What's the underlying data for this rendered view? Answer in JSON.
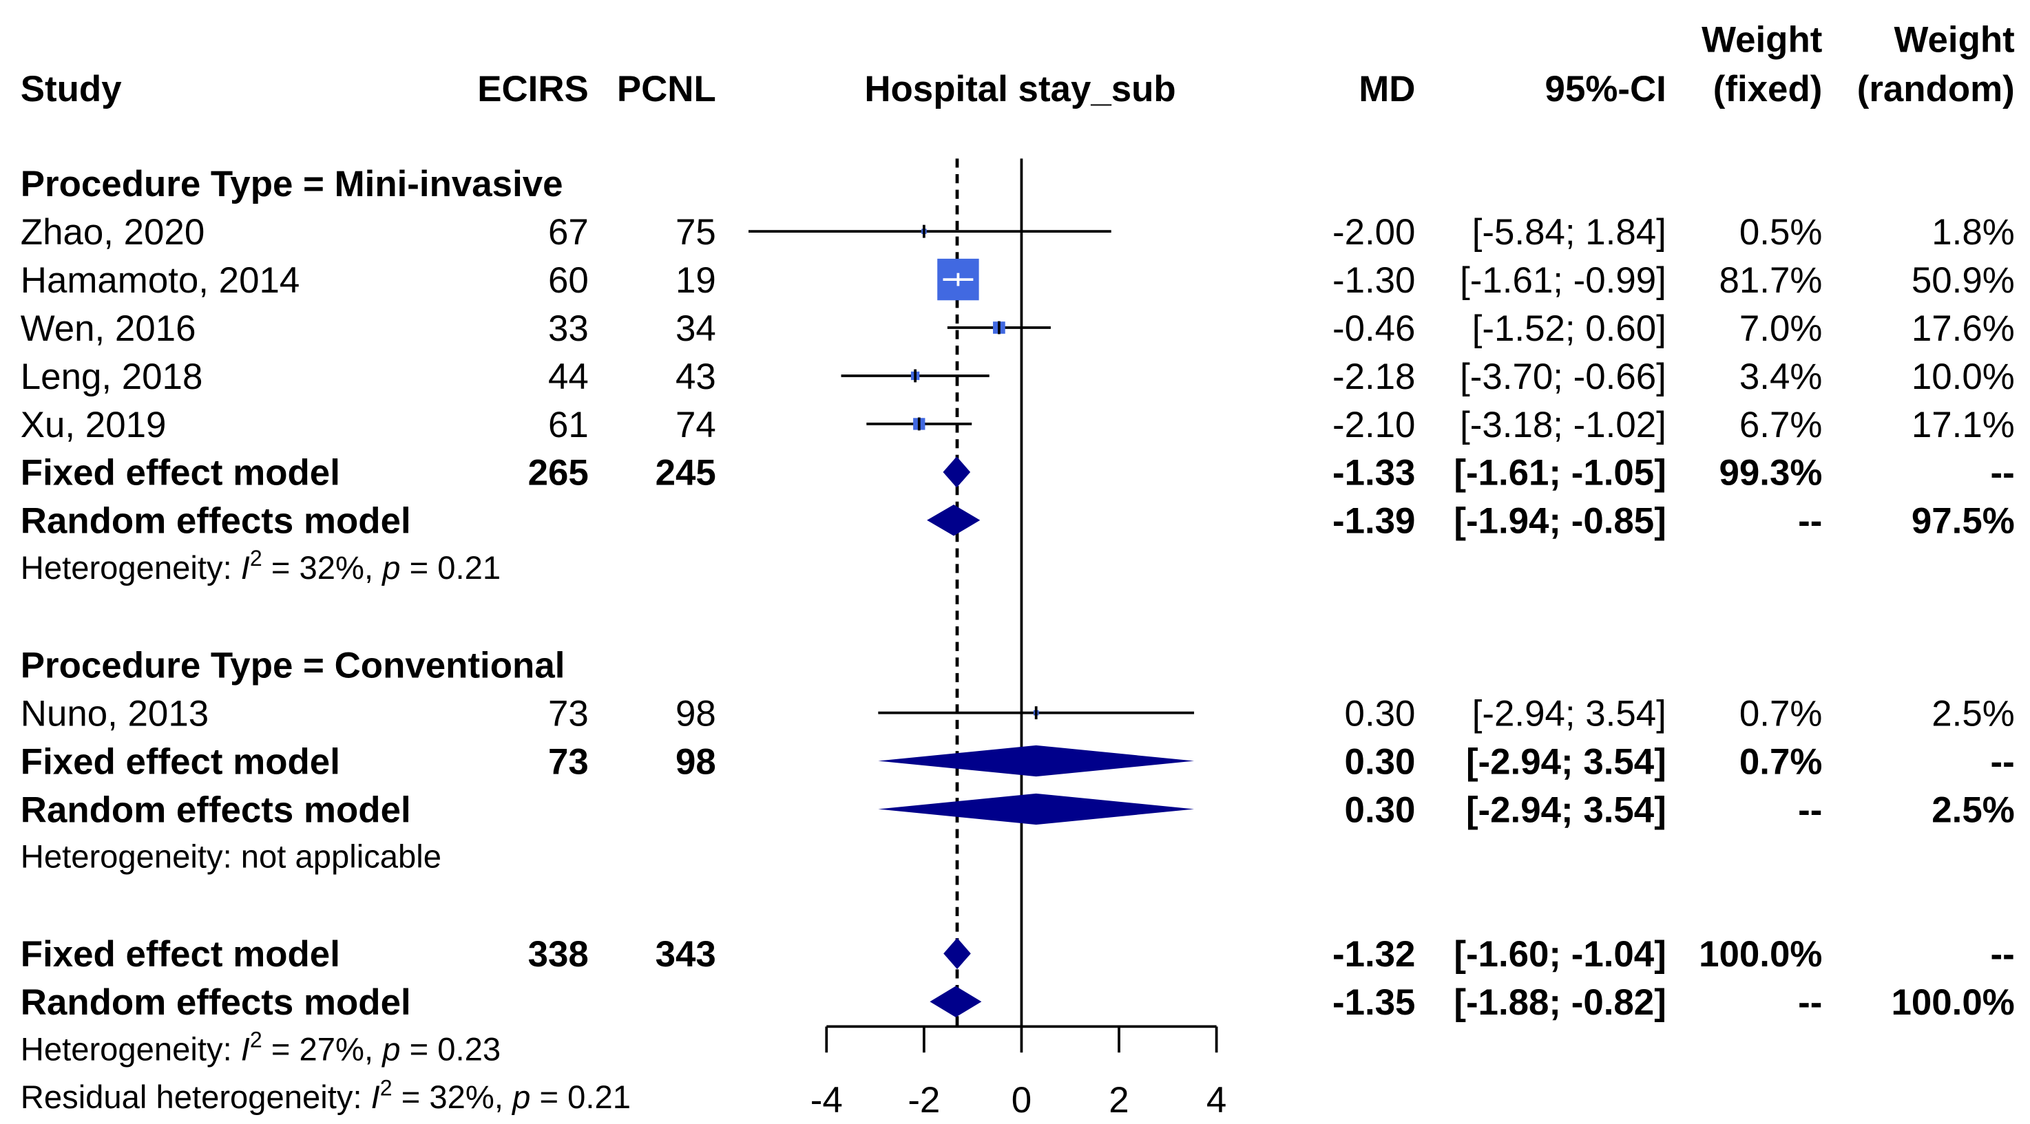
{
  "chart_data": {
    "type": "forest",
    "title": "Hospital stay_sub",
    "headers": {
      "study": "Study",
      "e": "ECIRS",
      "c": "PCNL",
      "plot": "Hospital stay_sub",
      "md": "MD",
      "ci": "95%-CI",
      "wf1": "Weight",
      "wf2": "(fixed)",
      "wr1": "Weight",
      "wr2": "(random)"
    },
    "xlim": [
      -4,
      4
    ],
    "xticks": [
      -4,
      -2,
      0,
      2,
      4
    ],
    "overall_fixed_line": -1.32,
    "rows": [
      {
        "kind": "group",
        "label": "Procedure Type = Mini-invasive"
      },
      {
        "kind": "study",
        "label": "Zhao, 2020",
        "e": "67",
        "c": "75",
        "md": -2.0,
        "lo": -5.84,
        "hi": 1.84,
        "mdt": "-2.00",
        "cit": "[-5.84;  1.84]",
        "wf": "0.5%",
        "wr": "1.8%",
        "w": 0.5
      },
      {
        "kind": "study",
        "label": "Hamamoto, 2014",
        "e": "60",
        "c": "19",
        "md": -1.3,
        "lo": -1.61,
        "hi": -0.99,
        "mdt": "-1.30",
        "cit": "[-1.61; -0.99]",
        "wf": "81.7%",
        "wr": "50.9%",
        "w": 81.7
      },
      {
        "kind": "study",
        "label": "Wen, 2016",
        "e": "33",
        "c": "34",
        "md": -0.46,
        "lo": -1.52,
        "hi": 0.6,
        "mdt": "-0.46",
        "cit": "[-1.52;  0.60]",
        "wf": "7.0%",
        "wr": "17.6%",
        "w": 7.0
      },
      {
        "kind": "study",
        "label": "Leng, 2018",
        "e": "44",
        "c": "43",
        "md": -2.18,
        "lo": -3.7,
        "hi": -0.66,
        "mdt": "-2.18",
        "cit": "[-3.70; -0.66]",
        "wf": "3.4%",
        "wr": "10.0%",
        "w": 3.4
      },
      {
        "kind": "study",
        "label": "Xu, 2019",
        "e": "61",
        "c": "74",
        "md": -2.1,
        "lo": -3.18,
        "hi": -1.02,
        "mdt": "-2.10",
        "cit": "[-3.18; -1.02]",
        "wf": "6.7%",
        "wr": "17.1%",
        "w": 6.7
      },
      {
        "kind": "fixed",
        "label": "Fixed effect model",
        "e": "265",
        "c": "245",
        "md": -1.33,
        "lo": -1.61,
        "hi": -1.05,
        "mdt": "-1.33",
        "cit": "[-1.61; -1.05]",
        "wf": "99.3%",
        "wr": "--"
      },
      {
        "kind": "random",
        "label": "Random effects model",
        "e": "",
        "c": "",
        "md": -1.39,
        "lo": -1.94,
        "hi": -0.85,
        "mdt": "-1.39",
        "cit": "[-1.94; -0.85]",
        "wf": "--",
        "wr": "97.5%"
      },
      {
        "kind": "het",
        "pre": "Heterogeneity: ",
        "i2": "I",
        "sup": "2",
        "post": " = 32%, ",
        "p": "p",
        "tail": " = 0.21"
      },
      {
        "kind": "blank"
      },
      {
        "kind": "group",
        "label": "Procedure Type = Conventional"
      },
      {
        "kind": "study",
        "label": "Nuno, 2013",
        "e": "73",
        "c": "98",
        "md": 0.3,
        "lo": -2.94,
        "hi": 3.54,
        "mdt": "0.30",
        "cit": "[-2.94;  3.54]",
        "wf": "0.7%",
        "wr": "2.5%",
        "w": 0.7
      },
      {
        "kind": "fixed",
        "label": "Fixed effect model",
        "e": "73",
        "c": "98",
        "md": 0.3,
        "lo": -2.94,
        "hi": 3.54,
        "mdt": "0.30",
        "cit": "[-2.94;  3.54]",
        "wf": "0.7%",
        "wr": "--"
      },
      {
        "kind": "random",
        "label": "Random effects model",
        "e": "",
        "c": "",
        "md": 0.3,
        "lo": -2.94,
        "hi": 3.54,
        "mdt": "0.30",
        "cit": "[-2.94;  3.54]",
        "wf": "--",
        "wr": "2.5%"
      },
      {
        "kind": "hettext",
        "text": "Heterogeneity: not applicable"
      },
      {
        "kind": "blank"
      },
      {
        "kind": "fixed",
        "label": "Fixed effect model",
        "e": "338",
        "c": "343",
        "md": -1.32,
        "lo": -1.6,
        "hi": -1.04,
        "mdt": "-1.32",
        "cit": "[-1.60; -1.04]",
        "wf": "100.0%",
        "wr": "--"
      },
      {
        "kind": "random",
        "label": "Random effects model",
        "e": "",
        "c": "",
        "md": -1.35,
        "lo": -1.88,
        "hi": -0.82,
        "mdt": "-1.35",
        "cit": "[-1.88; -0.82]",
        "wf": "--",
        "wr": "100.0%"
      },
      {
        "kind": "het",
        "pre": "Heterogeneity: ",
        "i2": "I",
        "sup": "2",
        "post": " = 27%, ",
        "p": "p",
        "tail": " = 0.23"
      },
      {
        "kind": "het",
        "pre": "Residual heterogeneity: ",
        "i2": "I",
        "sup": "2",
        "post": " = 32%, ",
        "p": "p",
        "tail": " = 0.21"
      }
    ],
    "colors": {
      "square": "#4169E1",
      "diamond": "#00008B",
      "line": "#000000"
    }
  }
}
